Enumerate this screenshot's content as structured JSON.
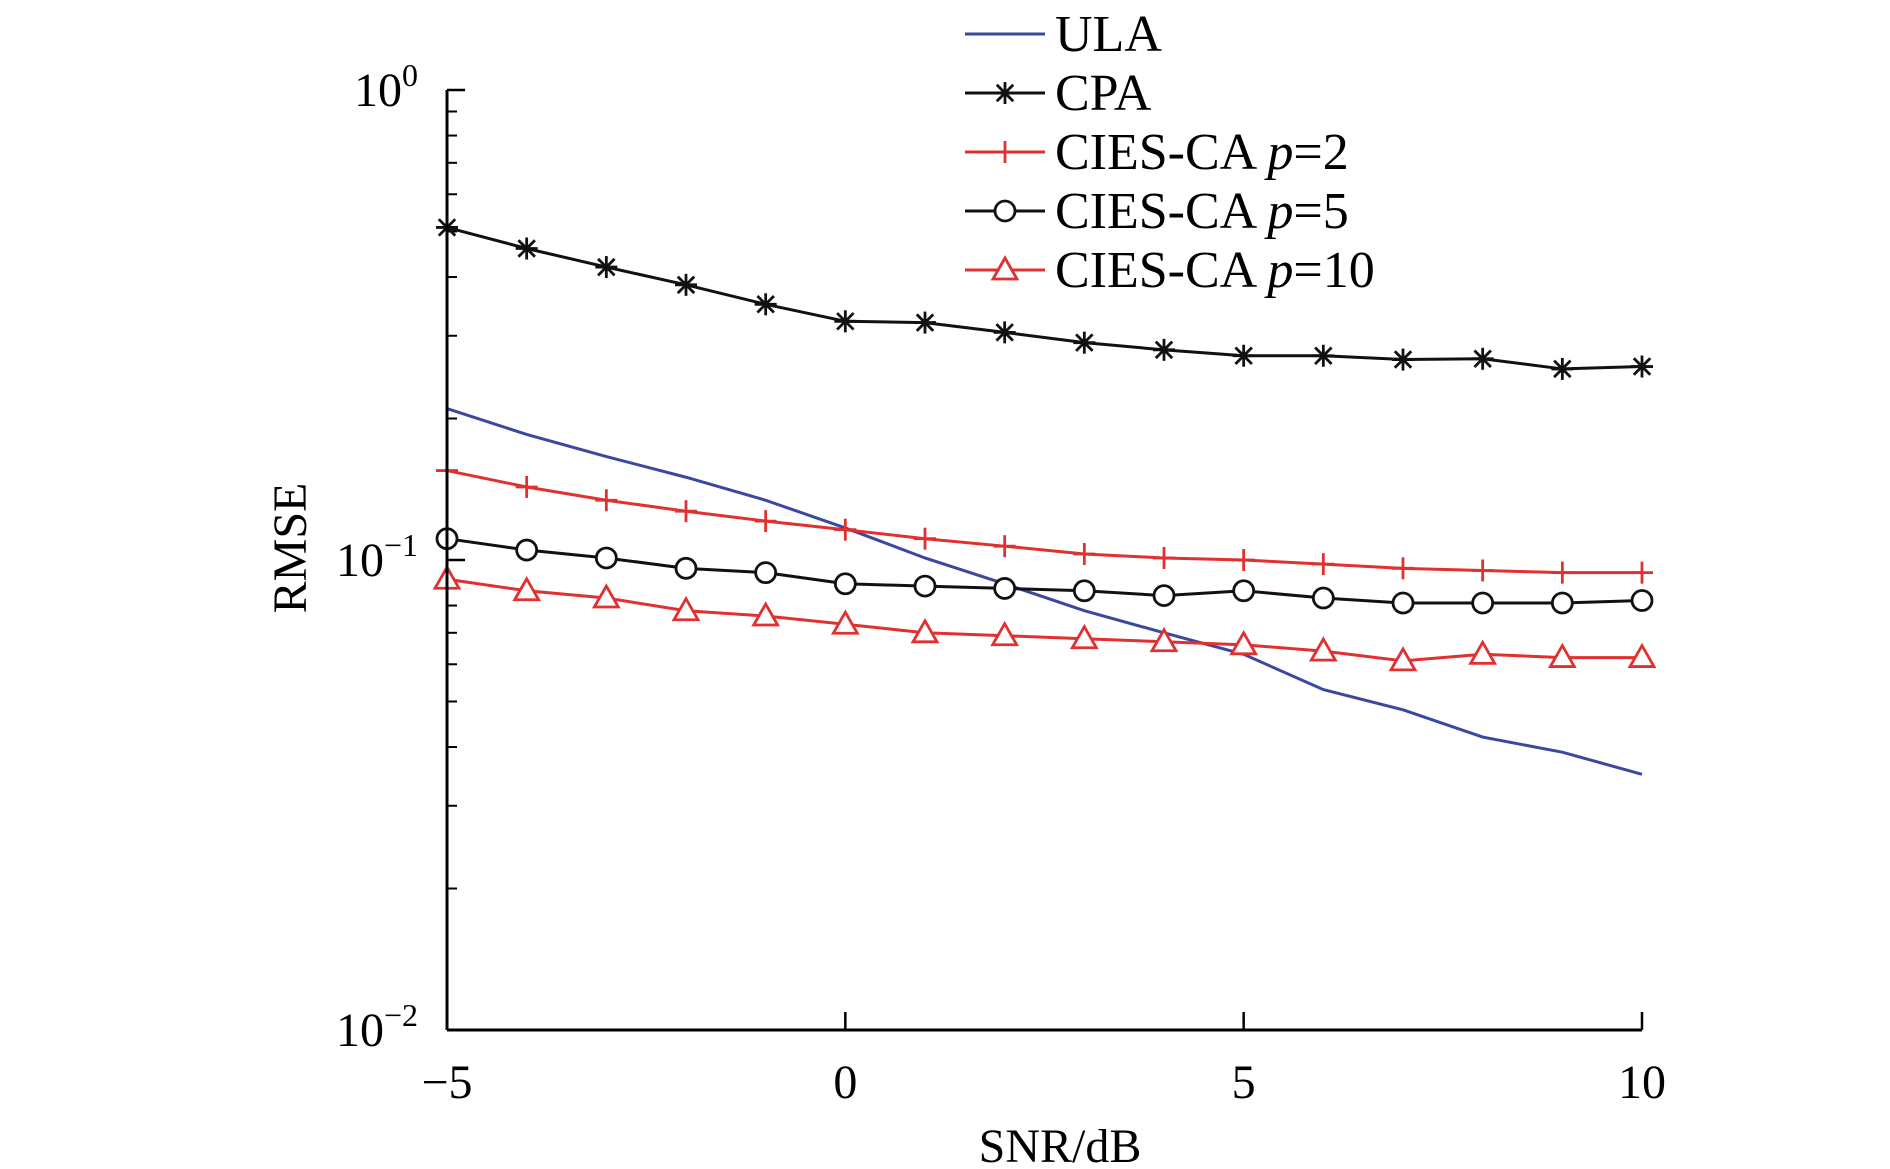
{
  "chart_data": {
    "type": "line",
    "xlabel": "SNR/dB",
    "ylabel": "RMSE",
    "yscale": "log",
    "xlim": [
      -5,
      10
    ],
    "ylim": [
      0.01,
      1
    ],
    "x_ticks": [
      -5,
      0,
      5,
      10
    ],
    "x_tick_labels": [
      "−5",
      "0",
      "5",
      "10"
    ],
    "y_ticks": [
      {
        "value": 0.01,
        "base": "10",
        "exp": "−2"
      },
      {
        "value": 0.1,
        "base": "10",
        "exp": "−1"
      },
      {
        "value": 1,
        "base": "10",
        "exp": "0"
      }
    ],
    "x": [
      -5,
      -4,
      -3,
      -2,
      -1,
      0,
      1,
      2,
      3,
      4,
      5,
      6,
      7,
      8,
      9,
      10
    ],
    "series": [
      {
        "name": "ULA",
        "label": "ULA",
        "label_italic": "",
        "label_suffix": "",
        "color": "#3b48a0",
        "marker": "none",
        "values": [
          0.21,
          0.185,
          0.166,
          0.15,
          0.134,
          0.117,
          0.101,
          0.089,
          0.078,
          0.07,
          0.063,
          0.053,
          0.048,
          0.042,
          0.039,
          0.035
        ]
      },
      {
        "name": "CPA",
        "label": "CPA",
        "label_italic": "",
        "label_suffix": "",
        "color": "#111111",
        "marker": "star",
        "values": [
          0.51,
          0.46,
          0.42,
          0.385,
          0.35,
          0.322,
          0.32,
          0.305,
          0.29,
          0.28,
          0.272,
          0.272,
          0.267,
          0.268,
          0.255,
          0.258
        ]
      },
      {
        "name": "CIES-CA p=2",
        "label": "CIES-CA ",
        "label_italic": "p",
        "label_suffix": "=2",
        "color": "#e03030",
        "marker": "plus",
        "values": [
          0.155,
          0.143,
          0.134,
          0.127,
          0.121,
          0.116,
          0.111,
          0.107,
          0.103,
          0.101,
          0.1,
          0.098,
          0.096,
          0.095,
          0.094,
          0.094
        ]
      },
      {
        "name": "CIES-CA p=5",
        "label": "CIES-CA ",
        "label_italic": "p",
        "label_suffix": "=5",
        "color": "#111111",
        "marker": "circle",
        "values": [
          0.111,
          0.105,
          0.101,
          0.096,
          0.094,
          0.089,
          0.088,
          0.087,
          0.086,
          0.084,
          0.086,
          0.083,
          0.081,
          0.081,
          0.081,
          0.082
        ]
      },
      {
        "name": "CIES-CA p=10",
        "label": "CIES-CA ",
        "label_italic": "p",
        "label_suffix": "=10",
        "color": "#e03030",
        "marker": "triangle",
        "values": [
          0.091,
          0.086,
          0.083,
          0.078,
          0.076,
          0.073,
          0.07,
          0.069,
          0.068,
          0.067,
          0.066,
          0.064,
          0.061,
          0.063,
          0.062,
          0.062
        ]
      }
    ],
    "legend": "top"
  }
}
